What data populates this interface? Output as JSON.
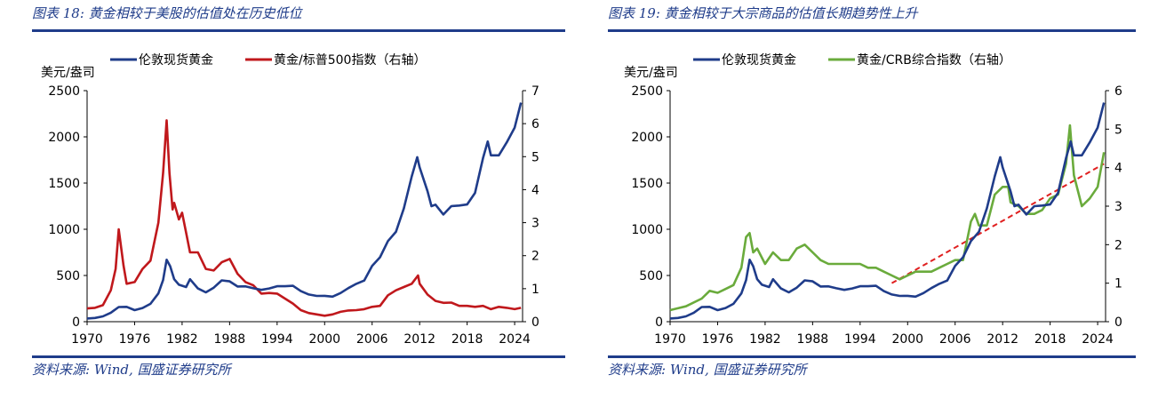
{
  "charts": [
    {
      "figure_title": "图表 18:  黄金相较于美股的估值处在历史低位",
      "source": "资料来源:  Wind, 国盛证券研究所",
      "chart_data": {
        "type": "line",
        "y_unit_label": "美元/盎司",
        "x_ticks": [
          "1970",
          "1976",
          "1982",
          "1988",
          "1994",
          "2000",
          "2006",
          "2012",
          "2018",
          "2024"
        ],
        "x_range": [
          1970,
          2025
        ],
        "ylim_left": [
          0,
          2500
        ],
        "yticks_left": [
          "0",
          "500",
          "1000",
          "1500",
          "2000",
          "2500"
        ],
        "ylim_right": [
          0,
          7
        ],
        "yticks_right": [
          "0",
          "1",
          "2",
          "3",
          "4",
          "5",
          "6",
          "7"
        ],
        "legend": [
          {
            "name": "伦敦现货黄金",
            "color": "#1f3c8a"
          },
          {
            "name": "黄金/标普500指数（右轴）",
            "color": "#c0181c"
          }
        ],
        "series": [
          {
            "name": "伦敦现货黄金",
            "axis": "left",
            "color": "#1f3c8a",
            "x": [
              1970,
              1971,
              1972,
              1973,
              1974,
              1975,
              1976,
              1977,
              1978,
              1979,
              1979.6,
              1980.05,
              1980.5,
              1981,
              1981.6,
              1982.5,
              1983,
              1984,
              1985,
              1986,
              1987,
              1988,
              1989,
              1990,
              1991,
              1992,
              1993,
              1994,
              1995,
              1996,
              1997,
              1998,
              1999,
              2000,
              2001,
              2002,
              2003,
              2004,
              2005,
              2006,
              2007,
              2008,
              2009,
              2010,
              2011,
              2011.7,
              2012,
              2013,
              2013.5,
              2014,
              2015,
              2016,
              2017,
              2018,
              2019,
              2020,
              2020.6,
              2021,
              2022,
              2023,
              2024,
              2024.8
            ],
            "y": [
              35,
              40,
              58,
              97,
              159,
              161,
              125,
              148,
              193,
              306,
              450,
              670,
              600,
              460,
              400,
              375,
              460,
              360,
              317,
              368,
              447,
              437,
              381,
              383,
              362,
              344,
              360,
              384,
              384,
              388,
              331,
              294,
              279,
              280,
              271,
              310,
              363,
              410,
              445,
              604,
              697,
              872,
              972,
              1225,
              1572,
              1780,
              1669,
              1411,
              1250,
              1266,
              1160,
              1250,
              1257,
              1268,
              1393,
              1770,
              1950,
              1800,
              1800,
              1940,
              2100,
              2370
            ]
          },
          {
            "name": "黄金/标普500指数（右轴）",
            "axis": "right",
            "color": "#c0181c",
            "x": [
              1970,
              1971,
              1972,
              1973,
              1973.6,
              1974,
              1974.6,
              1975,
              1976,
              1977,
              1978,
              1979,
              1979.6,
              1980.05,
              1980.4,
              1980.8,
              1981,
              1981.6,
              1982,
              1982.5,
              1983,
              1984,
              1985,
              1986,
              1987,
              1988,
              1989,
              1990,
              1991,
              1992,
              1993,
              1994,
              1995,
              1996,
              1997,
              1998,
              1999,
              2000,
              2001,
              2002,
              2003,
              2004,
              2005,
              2006,
              2007,
              2008,
              2009,
              2010,
              2011,
              2011.8,
              2012,
              2013,
              2014,
              2015,
              2016,
              2017,
              2018,
              2019,
              2020,
              2021,
              2022,
              2023,
              2024,
              2024.8
            ],
            "y": [
              0.4,
              0.42,
              0.5,
              0.95,
              1.6,
              2.8,
              1.7,
              1.15,
              1.2,
              1.6,
              1.85,
              3.0,
              4.5,
              6.1,
              4.5,
              3.4,
              3.6,
              3.1,
              3.3,
              2.7,
              2.1,
              2.1,
              1.6,
              1.55,
              1.8,
              1.9,
              1.45,
              1.2,
              1.1,
              0.85,
              0.87,
              0.85,
              0.7,
              0.55,
              0.35,
              0.26,
              0.22,
              0.18,
              0.22,
              0.3,
              0.34,
              0.35,
              0.38,
              0.45,
              0.48,
              0.8,
              0.95,
              1.05,
              1.15,
              1.4,
              1.15,
              0.82,
              0.63,
              0.57,
              0.58,
              0.48,
              0.48,
              0.45,
              0.48,
              0.38,
              0.45,
              0.42,
              0.38,
              0.42
            ]
          }
        ]
      }
    },
    {
      "figure_title": "图表 19:  黄金相较于大宗商品的估值长期趋势性上升",
      "source": "资料来源:  Wind, 国盛证券研究所",
      "chart_data": {
        "type": "line",
        "y_unit_label": "美元/盎司",
        "x_ticks": [
          "1970",
          "1976",
          "1982",
          "1988",
          "1994",
          "2000",
          "2006",
          "2012",
          "2018",
          "2024"
        ],
        "x_range": [
          1970,
          2025
        ],
        "ylim_left": [
          0,
          2500
        ],
        "yticks_left": [
          "0",
          "500",
          "1000",
          "1500",
          "2000",
          "2500"
        ],
        "ylim_right": [
          0,
          6
        ],
        "yticks_right": [
          "0",
          "1",
          "2",
          "3",
          "4",
          "5",
          "6"
        ],
        "legend": [
          {
            "name": "伦敦现货黄金",
            "color": "#1f3c8a"
          },
          {
            "name": "黄金/CRB综合指数（右轴）",
            "color": "#6aab3c"
          }
        ],
        "trend": {
          "axis": "right",
          "color": "#e02020",
          "x": [
            1998,
            2024.8
          ],
          "y": [
            1.0,
            4.1
          ]
        },
        "series": [
          {
            "name": "伦敦现货黄金",
            "axis": "left",
            "color": "#1f3c8a",
            "x": [
              1970,
              1971,
              1972,
              1973,
              1974,
              1975,
              1976,
              1977,
              1978,
              1979,
              1979.6,
              1980.05,
              1980.5,
              1981,
              1981.6,
              1982.5,
              1983,
              1984,
              1985,
              1986,
              1987,
              1988,
              1989,
              1990,
              1991,
              1992,
              1993,
              1994,
              1995,
              1996,
              1997,
              1998,
              1999,
              2000,
              2001,
              2002,
              2003,
              2004,
              2005,
              2006,
              2007,
              2008,
              2009,
              2010,
              2011,
              2011.7,
              2012,
              2013,
              2013.5,
              2014,
              2015,
              2016,
              2017,
              2018,
              2019,
              2020,
              2020.6,
              2021,
              2022,
              2023,
              2024,
              2024.8
            ],
            "y": [
              35,
              40,
              58,
              97,
              159,
              161,
              125,
              148,
              193,
              306,
              450,
              670,
              600,
              460,
              400,
              375,
              460,
              360,
              317,
              368,
              447,
              437,
              381,
              383,
              362,
              344,
              360,
              384,
              384,
              388,
              331,
              294,
              279,
              280,
              271,
              310,
              363,
              410,
              445,
              604,
              697,
              872,
              972,
              1225,
              1572,
              1780,
              1669,
              1411,
              1250,
              1266,
              1160,
              1250,
              1257,
              1268,
              1393,
              1770,
              1950,
              1800,
              1800,
              1940,
              2100,
              2370
            ]
          },
          {
            "name": "黄金/CRB综合指数（右轴）",
            "axis": "right",
            "color": "#6aab3c",
            "x": [
              1970,
              1972,
              1974,
              1975,
              1976,
              1977,
              1978,
              1979,
              1979.6,
              1980.05,
              1980.5,
              1981,
              1982,
              1983,
              1984,
              1985,
              1986,
              1987,
              1988,
              1989,
              1990,
              1991,
              1992,
              1993,
              1994,
              1995,
              1996,
              1997,
              1998,
              1999,
              2000,
              2001,
              2002,
              2003,
              2004,
              2005,
              2006,
              2007,
              2008,
              2008.5,
              2009,
              2010,
              2011,
              2012,
              2012.7,
              2013,
              2014,
              2015,
              2016,
              2017,
              2018,
              2019,
              2020,
              2020.5,
              2021,
              2022,
              2023,
              2024,
              2024.8
            ],
            "y": [
              0.3,
              0.4,
              0.6,
              0.8,
              0.75,
              0.85,
              0.95,
              1.4,
              2.2,
              2.3,
              1.8,
              1.9,
              1.5,
              1.8,
              1.6,
              1.6,
              1.9,
              2.0,
              1.8,
              1.6,
              1.5,
              1.5,
              1.5,
              1.5,
              1.5,
              1.4,
              1.4,
              1.3,
              1.2,
              1.1,
              1.2,
              1.3,
              1.3,
              1.3,
              1.4,
              1.5,
              1.6,
              1.6,
              2.6,
              2.8,
              2.5,
              2.5,
              3.3,
              3.5,
              3.5,
              3.1,
              3.0,
              2.8,
              2.8,
              2.9,
              3.2,
              3.3,
              4.1,
              5.1,
              3.8,
              3.0,
              3.2,
              3.5,
              4.4
            ]
          }
        ]
      }
    }
  ]
}
